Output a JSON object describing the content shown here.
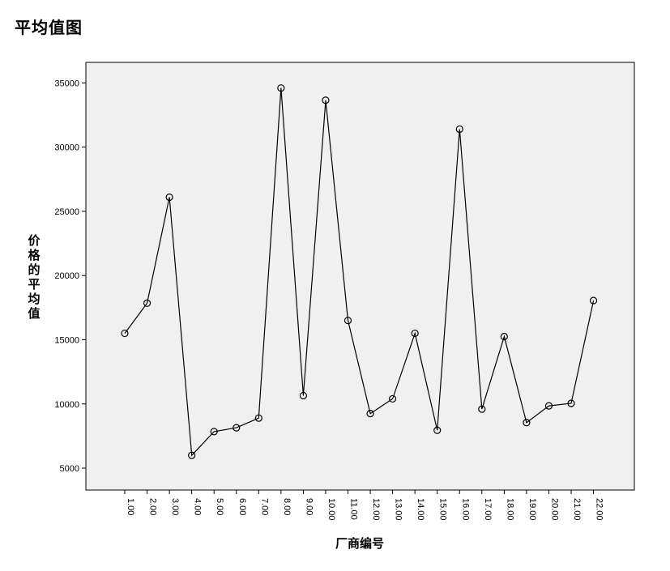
{
  "title": "平均值图",
  "chart_data": {
    "type": "line",
    "xlabel": "厂商编号",
    "ylabel": "价格的平均值",
    "categories": [
      "1.00",
      "2.00",
      "3.00",
      "4.00",
      "5.00",
      "6.00",
      "7.00",
      "8.00",
      "9.00",
      "10.00",
      "11.00",
      "12.00",
      "13.00",
      "14.00",
      "15.00",
      "16.00",
      "17.00",
      "18.00",
      "19.00",
      "20.00",
      "21.00",
      "22.00"
    ],
    "values": [
      15500,
      17850,
      26100,
      6000,
      7850,
      8150,
      8900,
      34600,
      10650,
      33650,
      16500,
      9250,
      10400,
      15500,
      7950,
      31400,
      9600,
      15250,
      8550,
      9850,
      10050,
      18050
    ],
    "yticks": [
      5000,
      10000,
      15000,
      20000,
      25000,
      30000,
      35000
    ],
    "ylim": [
      3300,
      36600
    ],
    "grid": false,
    "markers": "open-circle",
    "colors": {
      "line": "#000000",
      "plot_background": "#f0f0f0"
    }
  }
}
